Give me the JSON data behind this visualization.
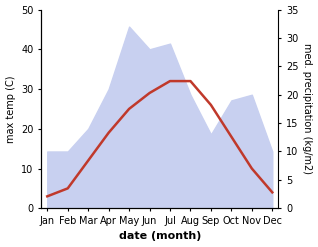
{
  "months": [
    "Jan",
    "Feb",
    "Mar",
    "Apr",
    "May",
    "Jun",
    "Jul",
    "Aug",
    "Sep",
    "Oct",
    "Nov",
    "Dec"
  ],
  "temp": [
    3,
    5,
    12,
    19,
    25,
    29,
    32,
    32,
    26,
    18,
    10,
    4
  ],
  "precip": [
    10,
    10,
    14,
    21,
    32,
    28,
    29,
    20,
    13,
    19,
    20,
    10
  ],
  "temp_color": "#c0392b",
  "precip_fill_color": "#c8d0f0",
  "left_ylim": [
    0,
    50
  ],
  "right_ylim": [
    0,
    35
  ],
  "left_yticks": [
    0,
    10,
    20,
    30,
    40,
    50
  ],
  "right_yticks": [
    0,
    5,
    10,
    15,
    20,
    25,
    30,
    35
  ],
  "xlabel": "date (month)",
  "ylabel_left": "max temp (C)",
  "ylabel_right": "med. precipitation (kg/m2)",
  "axis_fontsize": 8,
  "tick_fontsize": 7
}
